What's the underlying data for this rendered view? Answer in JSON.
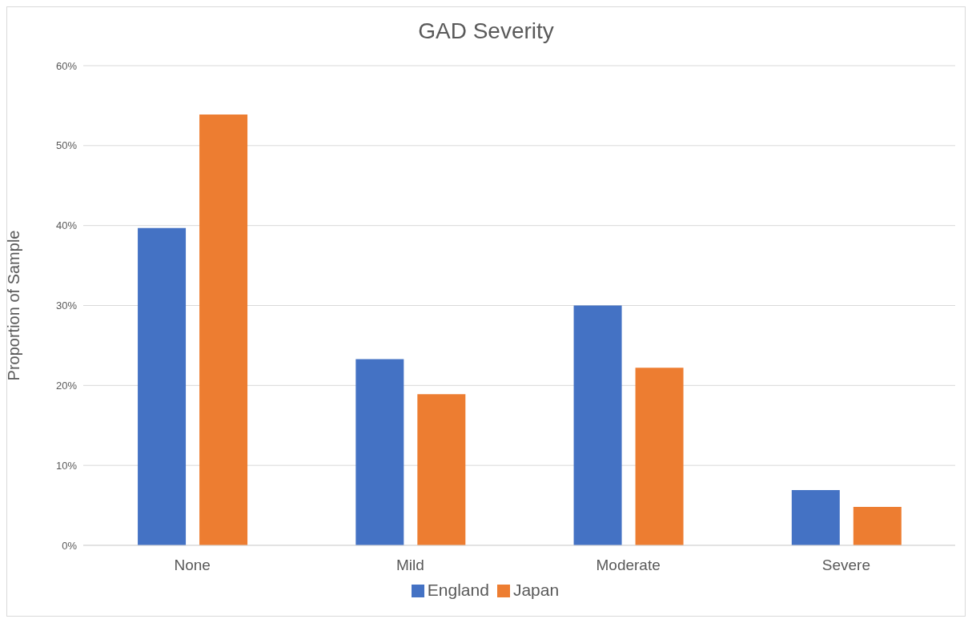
{
  "chart_data": {
    "type": "bar",
    "title": "GAD Severity",
    "ylabel": "Proportion of Sample",
    "categories": [
      "None",
      "Mild",
      "Moderate",
      "Severe"
    ],
    "series": [
      {
        "name": "England",
        "color": "#4472c4",
        "values": [
          39.7,
          23.3,
          30,
          6.9
        ]
      },
      {
        "name": "Japan",
        "color": "#ed7d31",
        "values": [
          53.9,
          18.9,
          22.2,
          4.8
        ]
      }
    ],
    "ylim": [
      0,
      60
    ],
    "yticks": [
      {
        "value": 0,
        "label": "0%"
      },
      {
        "value": 10,
        "label": "10%"
      },
      {
        "value": 20,
        "label": "20%"
      },
      {
        "value": 30,
        "label": "30%"
      },
      {
        "value": 40,
        "label": "40%"
      },
      {
        "value": 50,
        "label": "50%"
      },
      {
        "value": 60,
        "label": "60%"
      }
    ],
    "grid": "y",
    "legend": "bottom"
  }
}
